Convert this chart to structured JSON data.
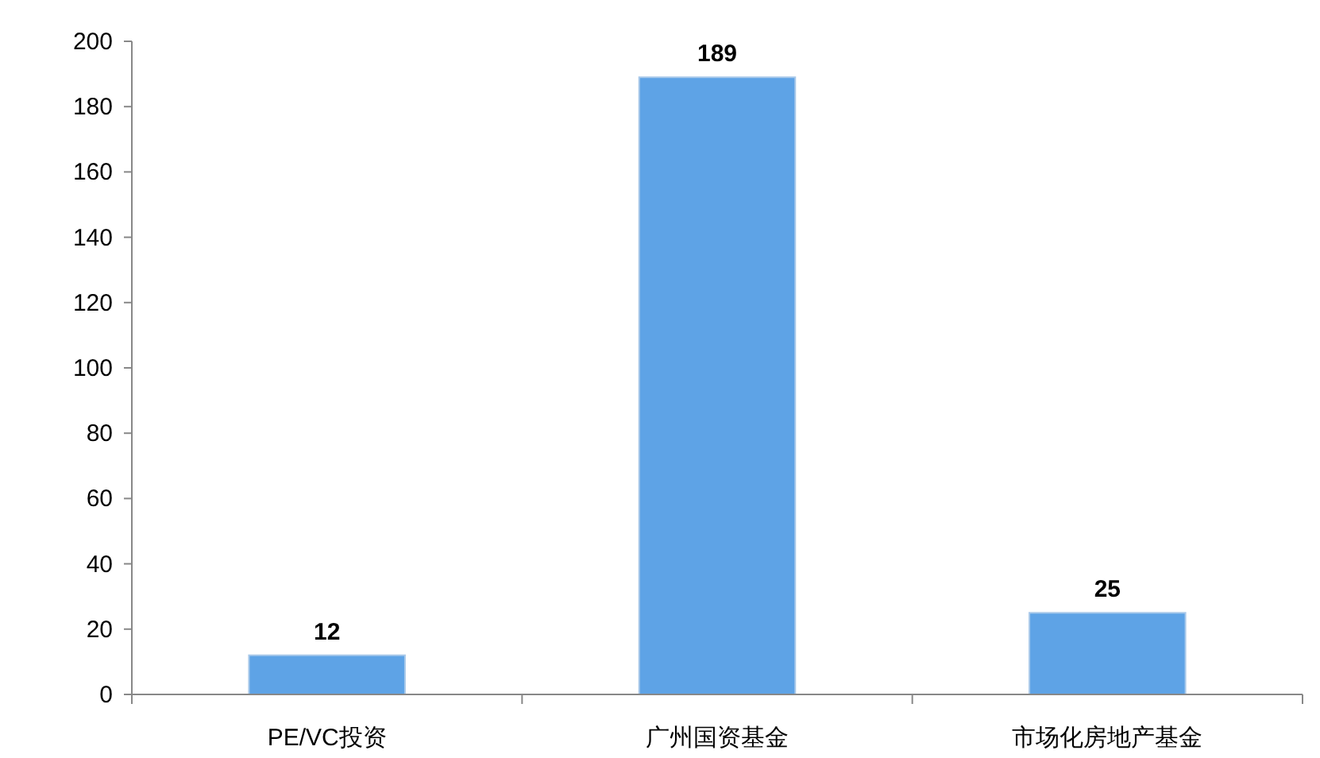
{
  "chart_data": {
    "type": "bar",
    "categories": [
      "PE/VC投资",
      "广州国资基金",
      "市场化房地产基金"
    ],
    "values": [
      12,
      189,
      25
    ],
    "color": "#5ea3e6",
    "ylim": [
      0,
      200
    ],
    "yticks": [
      0,
      20,
      40,
      60,
      80,
      100,
      120,
      140,
      160,
      180,
      200
    ],
    "data_labels": true
  }
}
